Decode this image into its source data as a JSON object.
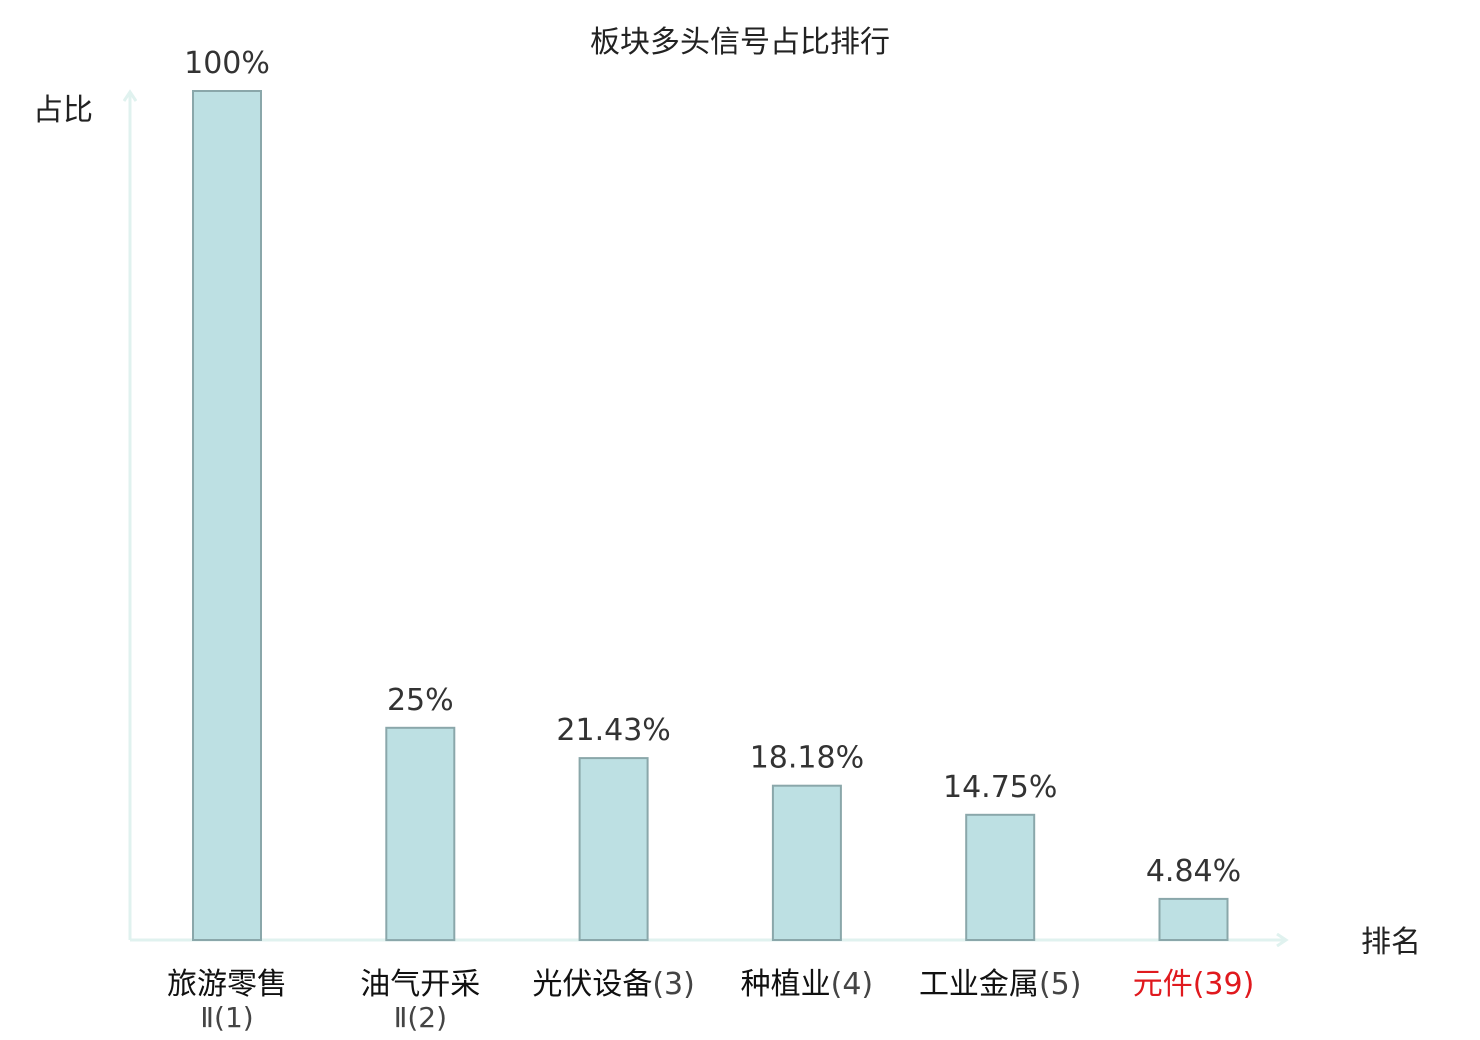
{
  "chart_data": {
    "type": "bar",
    "title": "板块多头信号占比排行",
    "ylabel": "占比",
    "xlabel": "排名",
    "ylim": [
      0,
      100
    ],
    "grid": false,
    "legend": "none",
    "categories": [
      {
        "name": "旅游零售",
        "suffix": "Ⅱ",
        "rank": "(1)",
        "highlight": false
      },
      {
        "name": "油气开采",
        "suffix": "Ⅱ",
        "rank": "(2)",
        "highlight": false
      },
      {
        "name": "光伏设备",
        "suffix": "",
        "rank": "(3)",
        "highlight": false
      },
      {
        "name": "种植业",
        "suffix": "",
        "rank": "(4)",
        "highlight": false
      },
      {
        "name": "工业金属",
        "suffix": "",
        "rank": "(5)",
        "highlight": false
      },
      {
        "name": "元件",
        "suffix": "",
        "rank": "(39)",
        "highlight": true
      }
    ],
    "values": [
      100,
      25,
      21.43,
      18.18,
      14.75,
      4.84
    ],
    "value_labels": [
      "100%",
      "25%",
      "21.43%",
      "18.18%",
      "14.75%",
      "4.84%"
    ],
    "colors": {
      "bar_fill": "#bde0e3",
      "bar_stroke": "#8aa7aa",
      "axis": "#e0f2ef",
      "text": "#333333",
      "highlight": "#e0191e"
    }
  }
}
